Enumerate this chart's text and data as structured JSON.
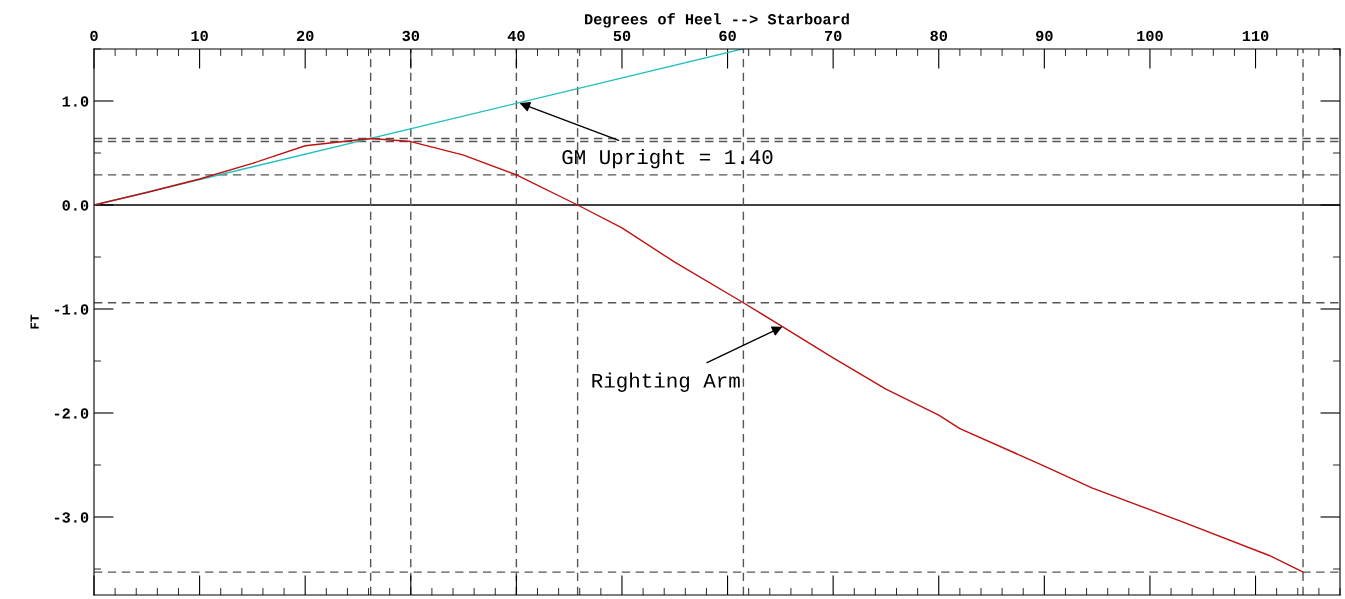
{
  "chart_data": {
    "type": "line",
    "xlabel": "Degrees of Heel --> Starboard",
    "ylabel": "FT",
    "xlim": [
      0,
      118
    ],
    "xticks": [
      0,
      10,
      20,
      30,
      40,
      50,
      60,
      70,
      80,
      90,
      100,
      110
    ],
    "ylim": [
      -3.75,
      1.5
    ],
    "yticks": [
      {
        "value": 1,
        "label": "1.0"
      },
      {
        "value": 0,
        "label": "0.0"
      },
      {
        "value": -1,
        "label": "-1.0"
      },
      {
        "value": -2,
        "label": "-2.0"
      },
      {
        "value": -3,
        "label": "-3.0"
      }
    ],
    "grid": false,
    "legend": false,
    "marker": "none",
    "line_style": "solid",
    "series": [
      {
        "color": "#1fbfbf",
        "x": [
          0,
          61.4
        ],
        "values": [
          0,
          1.5
        ]
      },
      {
        "color": "#c01010",
        "x": [
          0,
          5,
          10,
          15,
          20,
          26.2,
          30,
          35,
          40,
          45.8,
          50,
          55,
          61.5,
          65.2,
          70,
          75,
          80,
          82,
          90,
          94.5,
          102.9,
          111.3,
          114.5
        ],
        "values": [
          0,
          0.12,
          0.25,
          0.4,
          0.57,
          0.64,
          0.61,
          0.48,
          0.29,
          0,
          -0.22,
          -0.55,
          -0.94,
          -1.17,
          -1.47,
          -1.77,
          -2.02,
          -2.15,
          -2.51,
          -2.72,
          -3.04,
          -3.37,
          -3.53
        ]
      }
    ],
    "ref_lines": [
      {
        "axis": "y",
        "value": 0,
        "color": "#000000",
        "line_style": "solid"
      },
      {
        "axis": "y",
        "value": 0.64,
        "color": "#555555",
        "line_style": "dashed"
      },
      {
        "axis": "y",
        "value": 0.61,
        "color": "#555555",
        "line_style": "dashed"
      },
      {
        "axis": "y",
        "value": 0.29,
        "color": "#555555",
        "line_style": "dashed"
      },
      {
        "axis": "y",
        "value": -0.94,
        "color": "#555555",
        "line_style": "dashed"
      },
      {
        "axis": "y",
        "value": -3.53,
        "color": "#555555",
        "line_style": "dashed"
      },
      {
        "axis": "x",
        "value": 26.2,
        "color": "#555555",
        "line_style": "dashed"
      },
      {
        "axis": "x",
        "value": 30,
        "color": "#555555",
        "line_style": "dashed"
      },
      {
        "axis": "x",
        "value": 40,
        "color": "#555555",
        "line_style": "dashed"
      },
      {
        "axis": "x",
        "value": 45.8,
        "color": "#555555",
        "line_style": "dashed"
      },
      {
        "axis": "x",
        "value": 61.5,
        "color": "#555555",
        "line_style": "dashed"
      },
      {
        "axis": "x",
        "value": 114.5,
        "color": "#555555",
        "line_style": "dashed"
      }
    ],
    "annotations": [
      {
        "text": "GM Upright = 1.40",
        "x": 40.3,
        "y": 0.98
      },
      {
        "text": "Righting Arm",
        "x": 65.2,
        "y": -1.17
      }
    ]
  }
}
